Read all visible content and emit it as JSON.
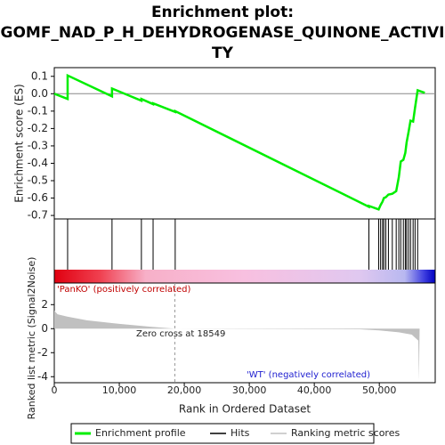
{
  "chart_data": [
    {
      "type": "line",
      "title": [
        "Enrichment plot:",
        "GOMF_NAD_P_H_DEHYDROGENASE_QUINONE_ACTIVI",
        "TY"
      ],
      "y_label": "Enrichment score (ES)",
      "x": [
        0,
        2050,
        2050,
        8880,
        8880,
        13400,
        13400,
        15200,
        15200,
        18600,
        18600,
        48400,
        48400,
        49900,
        50200,
        50500,
        50700,
        51000,
        51400,
        52000,
        52600,
        53000,
        53300,
        53700,
        54000,
        54200,
        54500,
        54800,
        55200,
        55500,
        55900,
        57000
      ],
      "series": [
        {
          "name": "Enrichment profile",
          "color": "#00ee00",
          "values": [
            0,
            -0.03,
            0.105,
            -0.015,
            0.03,
            -0.04,
            -0.03,
            -0.06,
            -0.055,
            -0.105,
            -0.1,
            -0.65,
            -0.645,
            -0.665,
            -0.64,
            -0.62,
            -0.6,
            -0.595,
            -0.58,
            -0.575,
            -0.56,
            -0.48,
            -0.39,
            -0.38,
            -0.34,
            -0.28,
            -0.22,
            -0.155,
            -0.16,
            -0.08,
            0.02,
            0.005
          ]
        }
      ],
      "xlim": [
        0,
        58600
      ],
      "ylim": [
        -0.72,
        0.15
      ],
      "yticks": [
        0.1,
        {
          "value": 0,
          "label": "0.0"
        },
        -0.1,
        -0.2,
        -0.3,
        -0.4,
        -0.5,
        -0.6,
        -0.7
      ]
    },
    {
      "type": "rug",
      "series": [
        {
          "name": "Hits",
          "color": "#000000",
          "x": [
            2050,
            8880,
            13400,
            15200,
            18600,
            48400,
            49900,
            50200,
            50500,
            50700,
            51000,
            51400,
            52000,
            52600,
            53000,
            53300,
            53700,
            54000,
            54200,
            54500,
            54800,
            55200,
            55500,
            55900
          ]
        }
      ],
      "xlim": [
        0,
        58600
      ]
    },
    {
      "type": "area",
      "y_label": "Ranked list metric (Signal2Noise)",
      "x_label": "Rank in Ordered Dataset",
      "x": [
        0,
        500,
        2000,
        5000,
        10000,
        15000,
        18549,
        47000,
        50000,
        53000,
        55000,
        56000,
        56100,
        56200
      ],
      "series": [
        {
          "name": "Ranking metric scores",
          "color": "#c0c0c0",
          "values": [
            1.5,
            1.2,
            1.0,
            0.7,
            0.4,
            0.15,
            0,
            -0.05,
            -0.15,
            -0.3,
            -0.5,
            -1.0,
            -4.3,
            0
          ]
        }
      ],
      "xlim": [
        0,
        58600
      ],
      "ylim": [
        -4.5,
        3.8
      ],
      "xticks": [
        0,
        {
          "value": 10000,
          "label": "10,000"
        },
        {
          "value": 20000,
          "label": "20,000"
        },
        {
          "value": 30000,
          "label": "30,000"
        },
        {
          "value": 40000,
          "label": "40,000"
        },
        {
          "value": 50000,
          "label": "50,000"
        }
      ],
      "yticks": [
        -4,
        -2,
        0,
        2
      ],
      "zero_cross": 18549,
      "annotations": [
        "'PanKO' (positively correlated)",
        "Zero cross at 18549",
        "'WT' (negatively correlated)"
      ]
    }
  ]
}
